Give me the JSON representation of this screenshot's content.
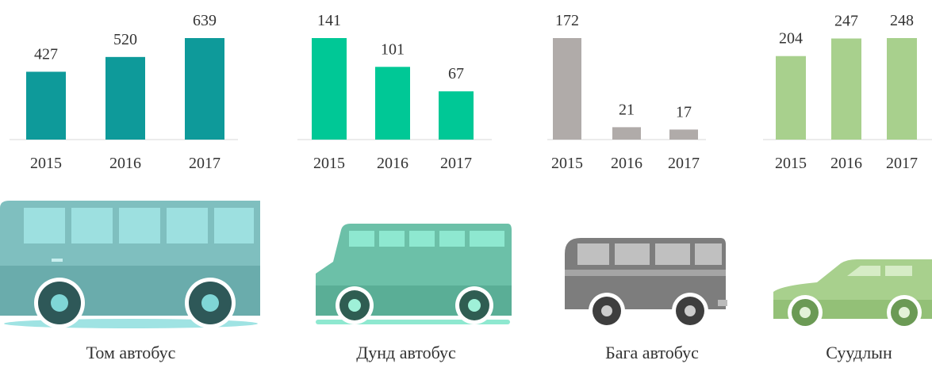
{
  "chart_data": [
    {
      "type": "bar",
      "caption": "Том автобус",
      "categories": [
        "2015",
        "2016",
        "2017"
      ],
      "values": [
        427,
        520,
        639
      ],
      "color": "#0e9a9a"
    },
    {
      "type": "bar",
      "caption": "Дунд автобус",
      "categories": [
        "2015",
        "2016",
        "2017"
      ],
      "values": [
        141,
        101,
        67
      ],
      "color": "#00c896"
    },
    {
      "type": "bar",
      "caption": "Бага автобус",
      "categories": [
        "2015",
        "2016",
        "2017"
      ],
      "values": [
        172,
        21,
        17
      ],
      "color": "#b0aba9"
    },
    {
      "type": "bar",
      "caption": "Суудлын",
      "categories": [
        "2015",
        "2016",
        "2017"
      ],
      "values": [
        204,
        247,
        248
      ],
      "color": "#a8d08d"
    }
  ]
}
